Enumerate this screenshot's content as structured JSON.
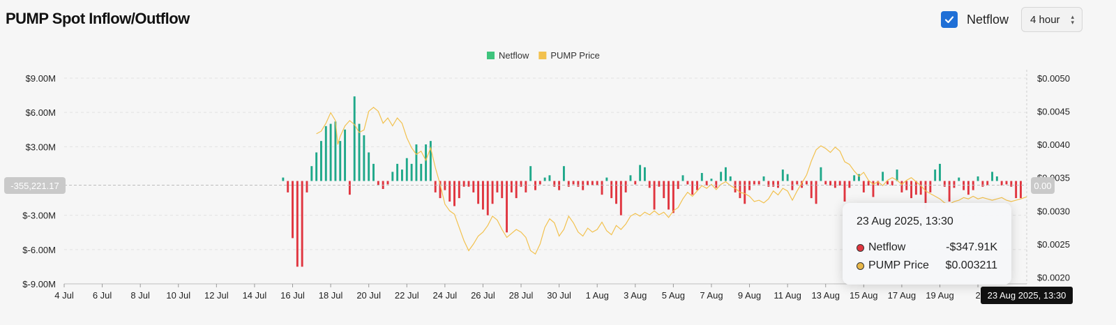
{
  "header": {
    "title": "PUMP Spot Inflow/Outflow",
    "netflow_checkbox_label": "Netflow",
    "netflow_checked": true,
    "interval_select_value": "4 hour",
    "accent_color": "#1f6fd6"
  },
  "tooltip": {
    "date": "23 Aug 2025, 13:30",
    "rows": [
      {
        "name": "Netflow",
        "value": "-$347.91K",
        "color": "#e0353f"
      },
      {
        "name": "PUMP Price",
        "value": "$0.003211",
        "color": "#e8b749"
      }
    ]
  },
  "chart_data": {
    "type": "bar",
    "x_tick_labels": [
      "4 Jul",
      "6 Jul",
      "8 Jul",
      "10 Jul",
      "12 Jul",
      "14 Jul",
      "16 Jul",
      "18 Jul",
      "20 Jul",
      "22 Jul",
      "24 Jul",
      "26 Jul",
      "28 Jul",
      "30 Jul",
      "1 Aug",
      "3 Aug",
      "5 Aug",
      "7 Aug",
      "9 Aug",
      "11 Aug",
      "13 Aug",
      "15 Aug",
      "17 Aug",
      "19 Aug",
      "2"
    ],
    "x_date_range": [
      "2025-07-04",
      "2025-08-23"
    ],
    "y_left": {
      "ticks": [
        "$9.00M",
        "$6.00M",
        "$3.00M",
        "$-3.00M",
        "$-6.00M",
        "$-9.00M"
      ],
      "ylim": [
        -9000000,
        9000000
      ]
    },
    "y_right": {
      "ticks": [
        "$0.0050",
        "$0.0045",
        "$0.0040",
        "$0.0035",
        "$0.0030",
        "$0.0025",
        "$0.0020"
      ],
      "ylim": [
        0.0019,
        0.005
      ]
    },
    "crosshair_y_label": "-355,221.17",
    "crosshair_right_label": "0.00",
    "crosshair_x_label": "23 Aug 2025, 13:30",
    "legend": {
      "placement": "top-center"
    },
    "positive_color": "#1fa88a",
    "negative_color": "#e0353f",
    "price_color": "#f2c14e",
    "series": [
      {
        "name": "Netflow",
        "start": "2025-07-15",
        "step_hours": 12,
        "values_millions": [
          0.3,
          -1.0,
          -5.0,
          -7.5,
          -7.5,
          -1.0,
          1.3,
          2.5,
          3.5,
          4.8,
          5.0,
          5.2,
          3.5,
          4.5,
          -1.2,
          7.4,
          5.0,
          4.0,
          2.5,
          1.5,
          -0.4,
          -0.7,
          -0.3,
          0.8,
          1.5,
          1.0,
          2.0,
          1.5,
          3.2,
          1.5,
          3.2,
          3.5,
          -1.0,
          -1.5,
          -0.8,
          -1.8,
          -2.2,
          -1.5,
          -0.5,
          -0.5,
          -1.0,
          -2.0,
          -2.5,
          -3.0,
          -2.0,
          -1.0,
          -1.5,
          -4.5,
          -1.0,
          -1.5,
          -0.5,
          -1.0,
          1.3,
          -0.8,
          -0.3,
          0.3,
          0.5,
          -0.5,
          -0.8,
          1.3,
          -0.5,
          -0.3,
          -0.5,
          -0.8,
          -0.4,
          -0.4,
          -0.4,
          -1.2,
          0.3,
          -1.5,
          -2.0,
          -3.0,
          -1.0,
          0.5,
          -0.3,
          1.4,
          1.2,
          -0.6,
          -2.5,
          -0.5,
          -1.5,
          -2.5,
          -2.8,
          -0.7,
          0.5,
          -0.3,
          -1.2,
          -0.8,
          0.7,
          -0.4,
          0.2,
          -0.6,
          0.8,
          1.2,
          0.4,
          -1.0,
          -1.5,
          -2.0,
          -0.8,
          -0.3,
          -0.3,
          0.4,
          -0.5,
          -0.5,
          -0.6,
          1.0,
          0.6,
          -0.8,
          -0.3,
          -0.6,
          -0.3,
          -1.5,
          -2.0,
          1.2,
          -0.3,
          -0.4,
          -0.6,
          -0.4,
          -1.8,
          -0.6,
          0.5,
          0.6,
          -1.0,
          -0.4,
          -1.4,
          -0.4,
          0.8,
          -0.3,
          -0.4,
          1.0,
          -1.0,
          -0.8,
          -1.5,
          -1.2,
          -1.2,
          -2.5,
          -1.0,
          1.0,
          1.5,
          -0.5,
          -1.8,
          -0.6,
          0.3,
          -0.8,
          -1.2,
          -0.8,
          0.4,
          -0.5,
          -0.4,
          0.8,
          0.4,
          -0.4,
          -0.3,
          -0.5,
          -1.5,
          -1.5,
          0.4,
          0.8,
          -0.6,
          -0.3,
          -0.3,
          -0.4,
          -1.0,
          -3.2,
          -0.9,
          0.4,
          0.3,
          -0.5,
          -0.6,
          -0.8,
          -0.6,
          -0.4,
          -0.3,
          -2.0,
          -0.5,
          0.5,
          1.8,
          2.7,
          4.8,
          3.2,
          1.8,
          0.5,
          -1.0,
          -1.5,
          -0.7,
          -0.5,
          -1.8,
          2.0,
          1.0,
          -0.6,
          -0.3,
          0.4,
          -0.6,
          -2.0,
          -0.4,
          0.3,
          0.5,
          -0.6,
          -0.5,
          -0.3,
          -0.5,
          -1.5,
          -1.0,
          -0.6,
          -0.4,
          -0.3,
          -1.4,
          -2.3,
          -0.4,
          -0.5,
          0.3,
          -0.8,
          -0.3,
          -1.5,
          -0.8,
          -1.5,
          -2.0,
          -0.5,
          -0.3,
          -0.6,
          -0.3,
          2.0,
          1.5,
          2.5,
          1.0,
          -0.4,
          0.8,
          -0.5,
          -0.8,
          -0.4,
          1.0,
          -0.6,
          2.4,
          1.0,
          -0.3,
          1.0,
          -0.35
        ]
      },
      {
        "name": "PUMP Price",
        "points": [
          [
            "2025-07-16T12:00",
            0.0
          ],
          [
            "2025-07-17T06:00",
            0.00416
          ],
          [
            "2025-07-17T12:00",
            0.0042
          ],
          [
            "2025-07-17T18:00",
            0.00432
          ],
          [
            "2025-07-18T00:00",
            0.00448
          ],
          [
            "2025-07-18T06:00",
            0.00436
          ],
          [
            "2025-07-18T09:00",
            0.004
          ],
          [
            "2025-07-18T12:00",
            0.00412
          ],
          [
            "2025-07-18T18:00",
            0.00428
          ],
          [
            "2025-07-19T00:00",
            0.00436
          ],
          [
            "2025-07-19T06:00",
            0.0043
          ],
          [
            "2025-07-19T12:00",
            0.00418
          ],
          [
            "2025-07-19T18:00",
            0.00422
          ],
          [
            "2025-07-20T00:00",
            0.0045
          ],
          [
            "2025-07-20T06:00",
            0.00456
          ],
          [
            "2025-07-20T12:00",
            0.0045
          ],
          [
            "2025-07-20T18:00",
            0.00432
          ],
          [
            "2025-07-21T00:00",
            0.0044
          ],
          [
            "2025-07-21T06:00",
            0.00428
          ],
          [
            "2025-07-21T12:00",
            0.0044
          ],
          [
            "2025-07-21T18:00",
            0.00432
          ],
          [
            "2025-07-22T00:00",
            0.0041
          ],
          [
            "2025-07-22T06:00",
            0.00395
          ],
          [
            "2025-07-22T12:00",
            0.00385
          ],
          [
            "2025-07-22T18:00",
            0.0039
          ],
          [
            "2025-07-23T00:00",
            0.00376
          ],
          [
            "2025-07-23T06:00",
            0.00395
          ],
          [
            "2025-07-23T12:00",
            0.00365
          ],
          [
            "2025-07-23T18:00",
            0.0034
          ],
          [
            "2025-07-24T00:00",
            0.0031
          ],
          [
            "2025-07-24T06:00",
            0.003
          ],
          [
            "2025-07-24T12:00",
            0.00295
          ],
          [
            "2025-07-24T18:00",
            0.00275
          ],
          [
            "2025-07-25T00:00",
            0.00255
          ],
          [
            "2025-07-25T06:00",
            0.0024
          ],
          [
            "2025-07-25T12:00",
            0.0025
          ],
          [
            "2025-07-25T18:00",
            0.00262
          ],
          [
            "2025-07-26T00:00",
            0.00268
          ],
          [
            "2025-07-26T06:00",
            0.00278
          ],
          [
            "2025-07-26T12:00",
            0.00292
          ],
          [
            "2025-07-26T18:00",
            0.00286
          ],
          [
            "2025-07-27T00:00",
            0.00272
          ],
          [
            "2025-07-27T06:00",
            0.0026
          ],
          [
            "2025-07-27T12:00",
            0.00266
          ],
          [
            "2025-07-27T18:00",
            0.00272
          ],
          [
            "2025-07-28T00:00",
            0.00268
          ],
          [
            "2025-07-28T06:00",
            0.0026
          ],
          [
            "2025-07-28T12:00",
            0.0024
          ],
          [
            "2025-07-28T18:00",
            0.00235
          ],
          [
            "2025-07-29T00:00",
            0.0025
          ],
          [
            "2025-07-29T06:00",
            0.00275
          ],
          [
            "2025-07-29T12:00",
            0.00288
          ],
          [
            "2025-07-29T18:00",
            0.00282
          ],
          [
            "2025-07-30T00:00",
            0.00262
          ],
          [
            "2025-07-30T06:00",
            0.00272
          ],
          [
            "2025-07-30T12:00",
            0.00292
          ],
          [
            "2025-07-30T18:00",
            0.00282
          ],
          [
            "2025-07-31T00:00",
            0.00268
          ],
          [
            "2025-07-31T06:00",
            0.00262
          ],
          [
            "2025-07-31T12:00",
            0.00274
          ],
          [
            "2025-07-31T18:00",
            0.00268
          ],
          [
            "2025-08-01T00:00",
            0.00272
          ],
          [
            "2025-08-01T06:00",
            0.00283
          ],
          [
            "2025-08-01T12:00",
            0.0027
          ],
          [
            "2025-08-01T18:00",
            0.00264
          ],
          [
            "2025-08-02T00:00",
            0.00278
          ],
          [
            "2025-08-02T06:00",
            0.00272
          ],
          [
            "2025-08-02T12:00",
            0.0028
          ],
          [
            "2025-08-02T18:00",
            0.00292
          ],
          [
            "2025-08-03T00:00",
            0.00296
          ],
          [
            "2025-08-03T06:00",
            0.00292
          ],
          [
            "2025-08-03T12:00",
            0.00298
          ],
          [
            "2025-08-03T18:00",
            0.00294
          ],
          [
            "2025-08-04T00:00",
            0.003
          ],
          [
            "2025-08-04T06:00",
            0.00294
          ],
          [
            "2025-08-04T12:00",
            0.00298
          ],
          [
            "2025-08-04T18:00",
            0.0029
          ],
          [
            "2025-08-05T00:00",
            0.003
          ],
          [
            "2025-08-05T06:00",
            0.00305
          ],
          [
            "2025-08-05T12:00",
            0.00318
          ],
          [
            "2025-08-05T18:00",
            0.00328
          ],
          [
            "2025-08-06T00:00",
            0.00322
          ],
          [
            "2025-08-06T06:00",
            0.0033
          ],
          [
            "2025-08-06T12:00",
            0.00338
          ],
          [
            "2025-08-06T18:00",
            0.00334
          ],
          [
            "2025-08-07T00:00",
            0.0034
          ],
          [
            "2025-08-07T06:00",
            0.00332
          ],
          [
            "2025-08-07T12:00",
            0.0034
          ],
          [
            "2025-08-07T18:00",
            0.00344
          ],
          [
            "2025-08-08T00:00",
            0.00338
          ],
          [
            "2025-08-08T06:00",
            0.00334
          ],
          [
            "2025-08-08T12:00",
            0.00328
          ],
          [
            "2025-08-08T18:00",
            0.00326
          ],
          [
            "2025-08-09T00:00",
            0.00322
          ],
          [
            "2025-08-09T06:00",
            0.00314
          ],
          [
            "2025-08-09T12:00",
            0.00316
          ],
          [
            "2025-08-09T18:00",
            0.00312
          ],
          [
            "2025-08-10T00:00",
            0.00318
          ],
          [
            "2025-08-10T06:00",
            0.0033
          ],
          [
            "2025-08-10T12:00",
            0.00324
          ],
          [
            "2025-08-10T18:00",
            0.00334
          ],
          [
            "2025-08-11T00:00",
            0.0033
          ],
          [
            "2025-08-11T06:00",
            0.00316
          ],
          [
            "2025-08-11T12:00",
            0.0033
          ],
          [
            "2025-08-11T18:00",
            0.00342
          ],
          [
            "2025-08-12T00:00",
            0.00354
          ],
          [
            "2025-08-12T06:00",
            0.00375
          ],
          [
            "2025-08-12T12:00",
            0.00392
          ],
          [
            "2025-08-12T18:00",
            0.00398
          ],
          [
            "2025-08-13T00:00",
            0.00394
          ],
          [
            "2025-08-13T06:00",
            0.00388
          ],
          [
            "2025-08-13T12:00",
            0.00396
          ],
          [
            "2025-08-13T18:00",
            0.0039
          ],
          [
            "2025-08-14T00:00",
            0.00374
          ],
          [
            "2025-08-14T06:00",
            0.0037
          ],
          [
            "2025-08-14T12:00",
            0.0036
          ],
          [
            "2025-08-14T18:00",
            0.00352
          ],
          [
            "2025-08-15T00:00",
            0.00358
          ],
          [
            "2025-08-15T06:00",
            0.00346
          ],
          [
            "2025-08-15T12:00",
            0.0034
          ],
          [
            "2025-08-15T18:00",
            0.00344
          ],
          [
            "2025-08-16T00:00",
            0.00338
          ],
          [
            "2025-08-16T06:00",
            0.00346
          ],
          [
            "2025-08-16T12:00",
            0.0035
          ],
          [
            "2025-08-16T18:00",
            0.00346
          ],
          [
            "2025-08-17T00:00",
            0.0034
          ],
          [
            "2025-08-17T06:00",
            0.00346
          ],
          [
            "2025-08-17T12:00",
            0.0035
          ],
          [
            "2025-08-17T18:00",
            0.00344
          ],
          [
            "2025-08-18T00:00",
            0.00338
          ],
          [
            "2025-08-18T06:00",
            0.0033
          ],
          [
            "2025-08-18T12:00",
            0.00326
          ],
          [
            "2025-08-18T18:00",
            0.00322
          ],
          [
            "2025-08-19T00:00",
            0.00318
          ],
          [
            "2025-08-19T06:00",
            0.00312
          ],
          [
            "2025-08-19T12:00",
            0.0031
          ],
          [
            "2025-08-19T18:00",
            0.00314
          ],
          [
            "2025-08-20T00:00",
            0.00316
          ],
          [
            "2025-08-20T06:00",
            0.0032
          ],
          [
            "2025-08-20T12:00",
            0.00318
          ],
          [
            "2025-08-20T18:00",
            0.00322
          ],
          [
            "2025-08-21T00:00",
            0.00318
          ],
          [
            "2025-08-21T06:00",
            0.0032
          ],
          [
            "2025-08-21T12:00",
            0.00318
          ],
          [
            "2025-08-21T18:00",
            0.00316
          ],
          [
            "2025-08-22T00:00",
            0.00318
          ],
          [
            "2025-08-22T06:00",
            0.0032
          ],
          [
            "2025-08-22T12:00",
            0.00316
          ],
          [
            "2025-08-22T18:00",
            0.00314
          ],
          [
            "2025-08-23T00:00",
            0.00316
          ],
          [
            "2025-08-23T06:00",
            0.00318
          ],
          [
            "2025-08-23T13:30",
            0.003211
          ]
        ]
      }
    ]
  }
}
